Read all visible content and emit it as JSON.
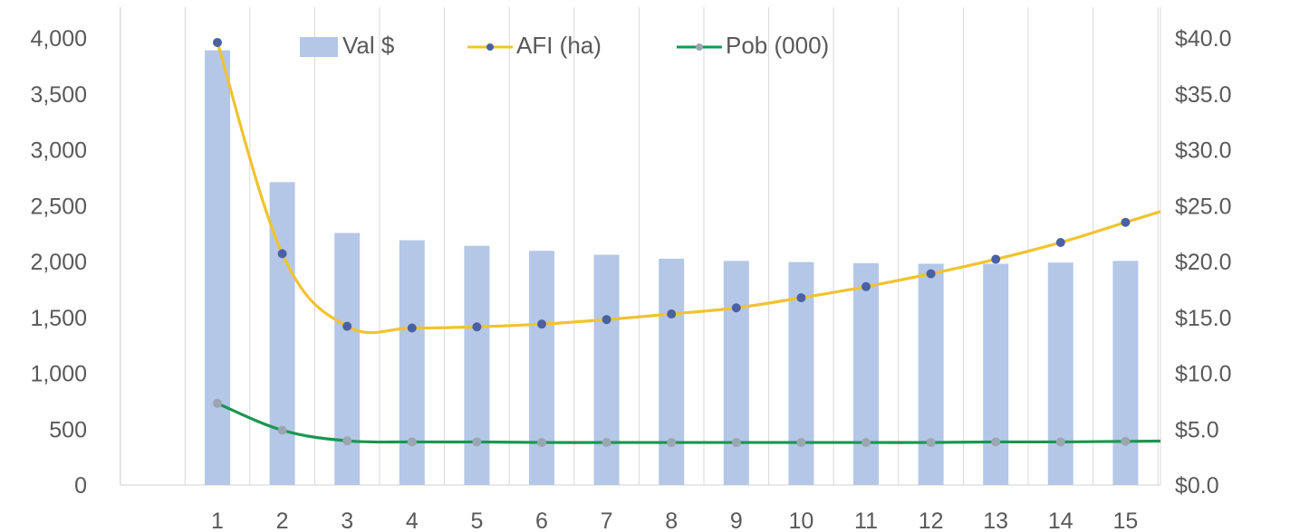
{
  "chart_data": {
    "type": "bar+line",
    "categories": [
      "1",
      "2",
      "3",
      "4",
      "5",
      "6",
      "7",
      "8",
      "9",
      "10",
      "11",
      "12",
      "13",
      "14",
      "15"
    ],
    "series": [
      {
        "name": "Val $",
        "type": "bar",
        "axis": "left",
        "values": [
          3890,
          2710,
          2255,
          2190,
          2140,
          2095,
          2060,
          2025,
          2005,
          1995,
          1985,
          1980,
          1980,
          1990,
          2005
        ]
      },
      {
        "name": "AFI (ha)",
        "type": "line",
        "axis": "left",
        "values": [
          3960,
          2070,
          1420,
          1405,
          1415,
          1440,
          1480,
          1530,
          1585,
          1675,
          1775,
          1890,
          2020,
          2170,
          2350
        ]
      },
      {
        "name": "Pob (000)",
        "type": "line",
        "axis": "left",
        "values": [
          730,
          490,
          395,
          385,
          385,
          380,
          380,
          380,
          380,
          380,
          380,
          380,
          385,
          385,
          390
        ]
      }
    ],
    "legend": {
      "labels": [
        "Val $",
        "AFI (ha)",
        "Pob (000)"
      ],
      "placement": "top"
    },
    "yleft": {
      "range": [
        0,
        4000
      ],
      "ticks": [
        "0",
        "500",
        "1,000",
        "1,500",
        "2,000",
        "2,500",
        "3,000",
        "3,500",
        "4,000"
      ]
    },
    "yright": {
      "range": [
        0,
        40
      ],
      "ticks": [
        "$0.0",
        "$5.0",
        "$10.0",
        "$15.0",
        "$20.0",
        "$25.0",
        "$30.0",
        "$35.0",
        "$40.0"
      ]
    },
    "grid": "vertical",
    "colors": {
      "bar": "#b4c7e7",
      "afi_line": "#f0c330",
      "afi_marker": "#4a62a3",
      "pob_line": "#1a9650",
      "pob_marker": "#9aa6b0",
      "grid": "#d9d9d9",
      "text": "#595959"
    }
  }
}
